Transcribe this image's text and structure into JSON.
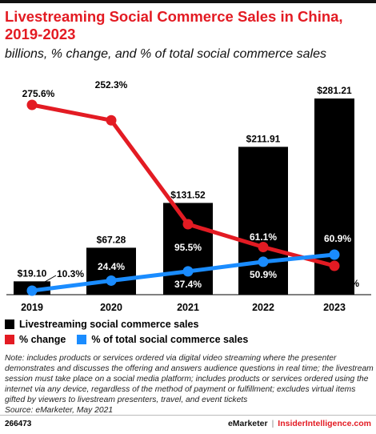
{
  "title": "Livestreaming Social Commerce Sales in China, 2019-2023",
  "subtitle": "billions, % change, and % of total social commerce sales",
  "chart_data": {
    "type": "bar",
    "categories": [
      "2019",
      "2020",
      "2021",
      "2022",
      "2023"
    ],
    "series": [
      {
        "name": "Livestreaming social commerce sales",
        "type": "bar",
        "values": [
          19.1,
          67.28,
          131.52,
          211.91,
          281.21
        ],
        "labels": [
          "$19.10",
          "$67.28",
          "$131.52",
          "$211.91",
          "$281.21"
        ],
        "color": "#000000"
      },
      {
        "name": "% change",
        "type": "line",
        "values": [
          275.6,
          252.3,
          95.5,
          61.1,
          32.7
        ],
        "labels": [
          "275.6%",
          "252.3%",
          "95.5%",
          "61.1%",
          "32.7%"
        ],
        "color": "#e31b23"
      },
      {
        "name": "% of total social commerce sales",
        "type": "line",
        "values": [
          10.3,
          24.4,
          37.4,
          50.9,
          60.9
        ],
        "labels": [
          "10.3%",
          "24.4%",
          "37.4%",
          "50.9%",
          "60.9%"
        ],
        "color": "#1a8cff"
      }
    ],
    "legend_position": "bottom-left"
  },
  "note": "Note: includes products or services ordered via digital video streaming where the presenter demonstrates and discusses the offering and answers audience questions in real time; the livestream session must take place on a social media platform; includes products or services ordered using the internet via any device, regardless of the method of payment or fulfillment; excludes virtual items gifted by viewers to livestream presenters, travel, and event tickets",
  "source": "Source: eMarketer, May 2021",
  "footer": {
    "id": "266473",
    "brand_left": "eMarketer",
    "separator": "|",
    "brand_right": "InsiderIntelligence.com"
  }
}
